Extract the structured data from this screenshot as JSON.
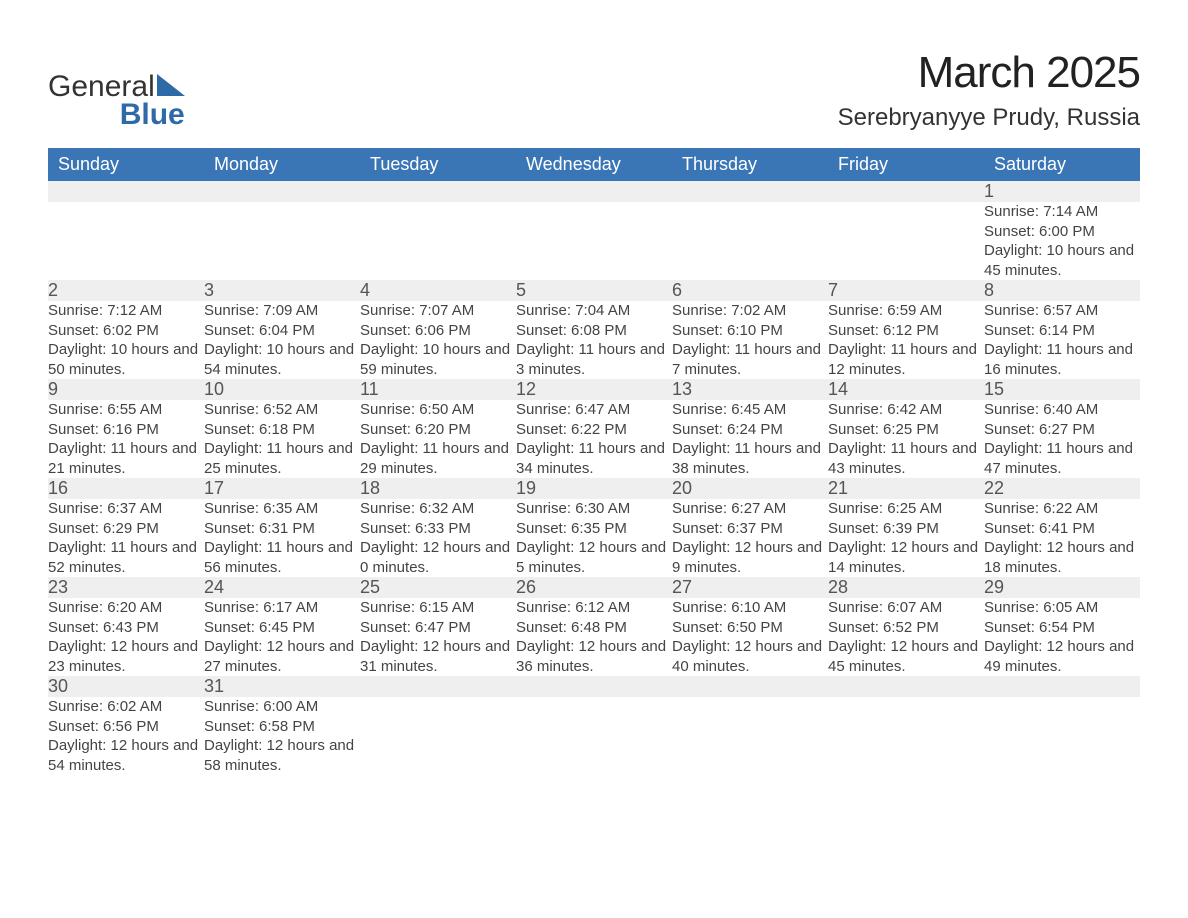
{
  "logo": {
    "word1": "General",
    "word2": "Blue",
    "brand_color": "#2f6aa8",
    "text_color": "#333333"
  },
  "header": {
    "title": "March 2025",
    "location": "Serebryanyye Prudy, Russia"
  },
  "calendar": {
    "columns": [
      "Sunday",
      "Monday",
      "Tuesday",
      "Wednesday",
      "Thursday",
      "Friday",
      "Saturday"
    ],
    "header_bg": "#3a76b5",
    "header_fg": "#ffffff",
    "daynum_bg": "#efefef",
    "divider_color": "#3a76b5",
    "labels": {
      "sunrise": "Sunrise:",
      "sunset": "Sunset:",
      "daylight": "Daylight:"
    },
    "weeks": [
      [
        null,
        null,
        null,
        null,
        null,
        null,
        {
          "n": "1",
          "sunrise": "7:14 AM",
          "sunset": "6:00 PM",
          "daylight": "10 hours and 45 minutes."
        }
      ],
      [
        {
          "n": "2",
          "sunrise": "7:12 AM",
          "sunset": "6:02 PM",
          "daylight": "10 hours and 50 minutes."
        },
        {
          "n": "3",
          "sunrise": "7:09 AM",
          "sunset": "6:04 PM",
          "daylight": "10 hours and 54 minutes."
        },
        {
          "n": "4",
          "sunrise": "7:07 AM",
          "sunset": "6:06 PM",
          "daylight": "10 hours and 59 minutes."
        },
        {
          "n": "5",
          "sunrise": "7:04 AM",
          "sunset": "6:08 PM",
          "daylight": "11 hours and 3 minutes."
        },
        {
          "n": "6",
          "sunrise": "7:02 AM",
          "sunset": "6:10 PM",
          "daylight": "11 hours and 7 minutes."
        },
        {
          "n": "7",
          "sunrise": "6:59 AM",
          "sunset": "6:12 PM",
          "daylight": "11 hours and 12 minutes."
        },
        {
          "n": "8",
          "sunrise": "6:57 AM",
          "sunset": "6:14 PM",
          "daylight": "11 hours and 16 minutes."
        }
      ],
      [
        {
          "n": "9",
          "sunrise": "6:55 AM",
          "sunset": "6:16 PM",
          "daylight": "11 hours and 21 minutes."
        },
        {
          "n": "10",
          "sunrise": "6:52 AM",
          "sunset": "6:18 PM",
          "daylight": "11 hours and 25 minutes."
        },
        {
          "n": "11",
          "sunrise": "6:50 AM",
          "sunset": "6:20 PM",
          "daylight": "11 hours and 29 minutes."
        },
        {
          "n": "12",
          "sunrise": "6:47 AM",
          "sunset": "6:22 PM",
          "daylight": "11 hours and 34 minutes."
        },
        {
          "n": "13",
          "sunrise": "6:45 AM",
          "sunset": "6:24 PM",
          "daylight": "11 hours and 38 minutes."
        },
        {
          "n": "14",
          "sunrise": "6:42 AM",
          "sunset": "6:25 PM",
          "daylight": "11 hours and 43 minutes."
        },
        {
          "n": "15",
          "sunrise": "6:40 AM",
          "sunset": "6:27 PM",
          "daylight": "11 hours and 47 minutes."
        }
      ],
      [
        {
          "n": "16",
          "sunrise": "6:37 AM",
          "sunset": "6:29 PM",
          "daylight": "11 hours and 52 minutes."
        },
        {
          "n": "17",
          "sunrise": "6:35 AM",
          "sunset": "6:31 PM",
          "daylight": "11 hours and 56 minutes."
        },
        {
          "n": "18",
          "sunrise": "6:32 AM",
          "sunset": "6:33 PM",
          "daylight": "12 hours and 0 minutes."
        },
        {
          "n": "19",
          "sunrise": "6:30 AM",
          "sunset": "6:35 PM",
          "daylight": "12 hours and 5 minutes."
        },
        {
          "n": "20",
          "sunrise": "6:27 AM",
          "sunset": "6:37 PM",
          "daylight": "12 hours and 9 minutes."
        },
        {
          "n": "21",
          "sunrise": "6:25 AM",
          "sunset": "6:39 PM",
          "daylight": "12 hours and 14 minutes."
        },
        {
          "n": "22",
          "sunrise": "6:22 AM",
          "sunset": "6:41 PM",
          "daylight": "12 hours and 18 minutes."
        }
      ],
      [
        {
          "n": "23",
          "sunrise": "6:20 AM",
          "sunset": "6:43 PM",
          "daylight": "12 hours and 23 minutes."
        },
        {
          "n": "24",
          "sunrise": "6:17 AM",
          "sunset": "6:45 PM",
          "daylight": "12 hours and 27 minutes."
        },
        {
          "n": "25",
          "sunrise": "6:15 AM",
          "sunset": "6:47 PM",
          "daylight": "12 hours and 31 minutes."
        },
        {
          "n": "26",
          "sunrise": "6:12 AM",
          "sunset": "6:48 PM",
          "daylight": "12 hours and 36 minutes."
        },
        {
          "n": "27",
          "sunrise": "6:10 AM",
          "sunset": "6:50 PM",
          "daylight": "12 hours and 40 minutes."
        },
        {
          "n": "28",
          "sunrise": "6:07 AM",
          "sunset": "6:52 PM",
          "daylight": "12 hours and 45 minutes."
        },
        {
          "n": "29",
          "sunrise": "6:05 AM",
          "sunset": "6:54 PM",
          "daylight": "12 hours and 49 minutes."
        }
      ],
      [
        {
          "n": "30",
          "sunrise": "6:02 AM",
          "sunset": "6:56 PM",
          "daylight": "12 hours and 54 minutes."
        },
        {
          "n": "31",
          "sunrise": "6:00 AM",
          "sunset": "6:58 PM",
          "daylight": "12 hours and 58 minutes."
        },
        null,
        null,
        null,
        null,
        null
      ]
    ]
  }
}
